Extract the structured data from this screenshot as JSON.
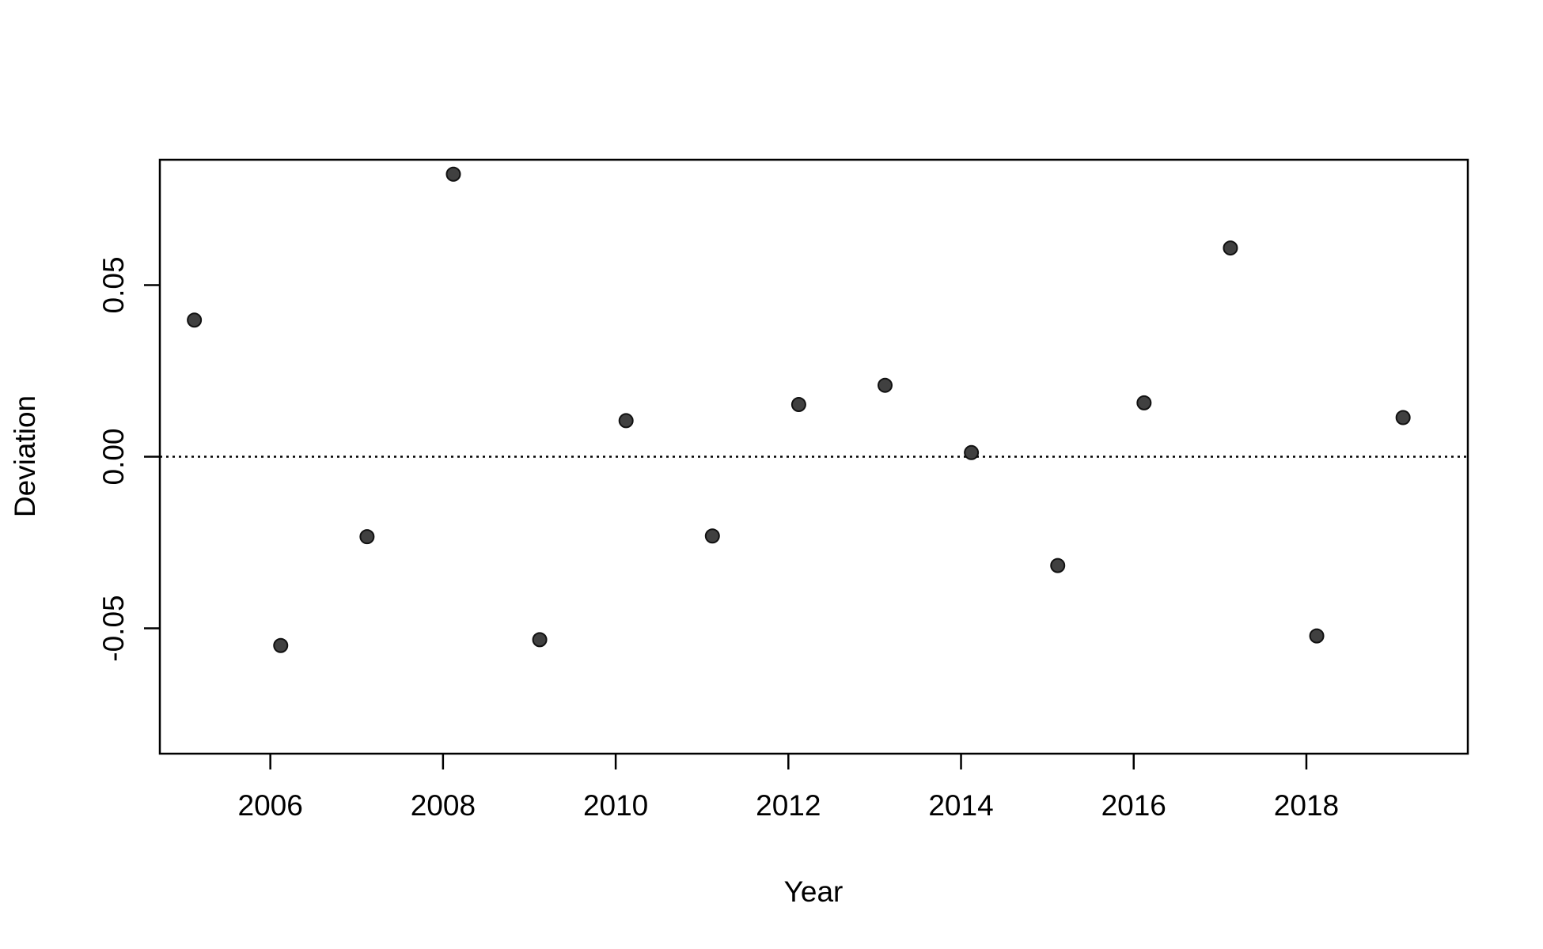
{
  "chart_data": {
    "type": "scatter",
    "title": "",
    "xlabel": "Year",
    "ylabel": "Deviation",
    "xlim": [
      2004.72,
      2019.87
    ],
    "ylim": [
      -0.0865,
      0.0865
    ],
    "x_ticks": [
      2006,
      2008,
      2010,
      2012,
      2014,
      2016,
      2018
    ],
    "y_ticks": [
      -0.05,
      0.0,
      0.05
    ],
    "x_tick_labels": [
      "2006",
      "2008",
      "2010",
      "2012",
      "2014",
      "2016",
      "2018"
    ],
    "y_tick_labels": [
      "-0.05",
      "0.00",
      "0.05"
    ],
    "reference_line": {
      "y": 0.0,
      "style": "dotted"
    },
    "grid": false,
    "legend": "none",
    "point_color": "#404040",
    "series": [
      {
        "x": [
          2005.12,
          2006.12,
          2007.12,
          2008.12,
          2009.12,
          2010.12,
          2011.12,
          2012.12,
          2013.12,
          2014.12,
          2015.12,
          2016.12,
          2017.12,
          2018.12,
          2019.12
        ],
        "y": [
          0.0398,
          -0.055,
          -0.0233,
          0.0823,
          -0.0533,
          0.0105,
          -0.0231,
          0.0152,
          0.0208,
          0.0012,
          -0.0317,
          0.0157,
          0.0608,
          -0.0522,
          0.0114
        ]
      }
    ]
  }
}
